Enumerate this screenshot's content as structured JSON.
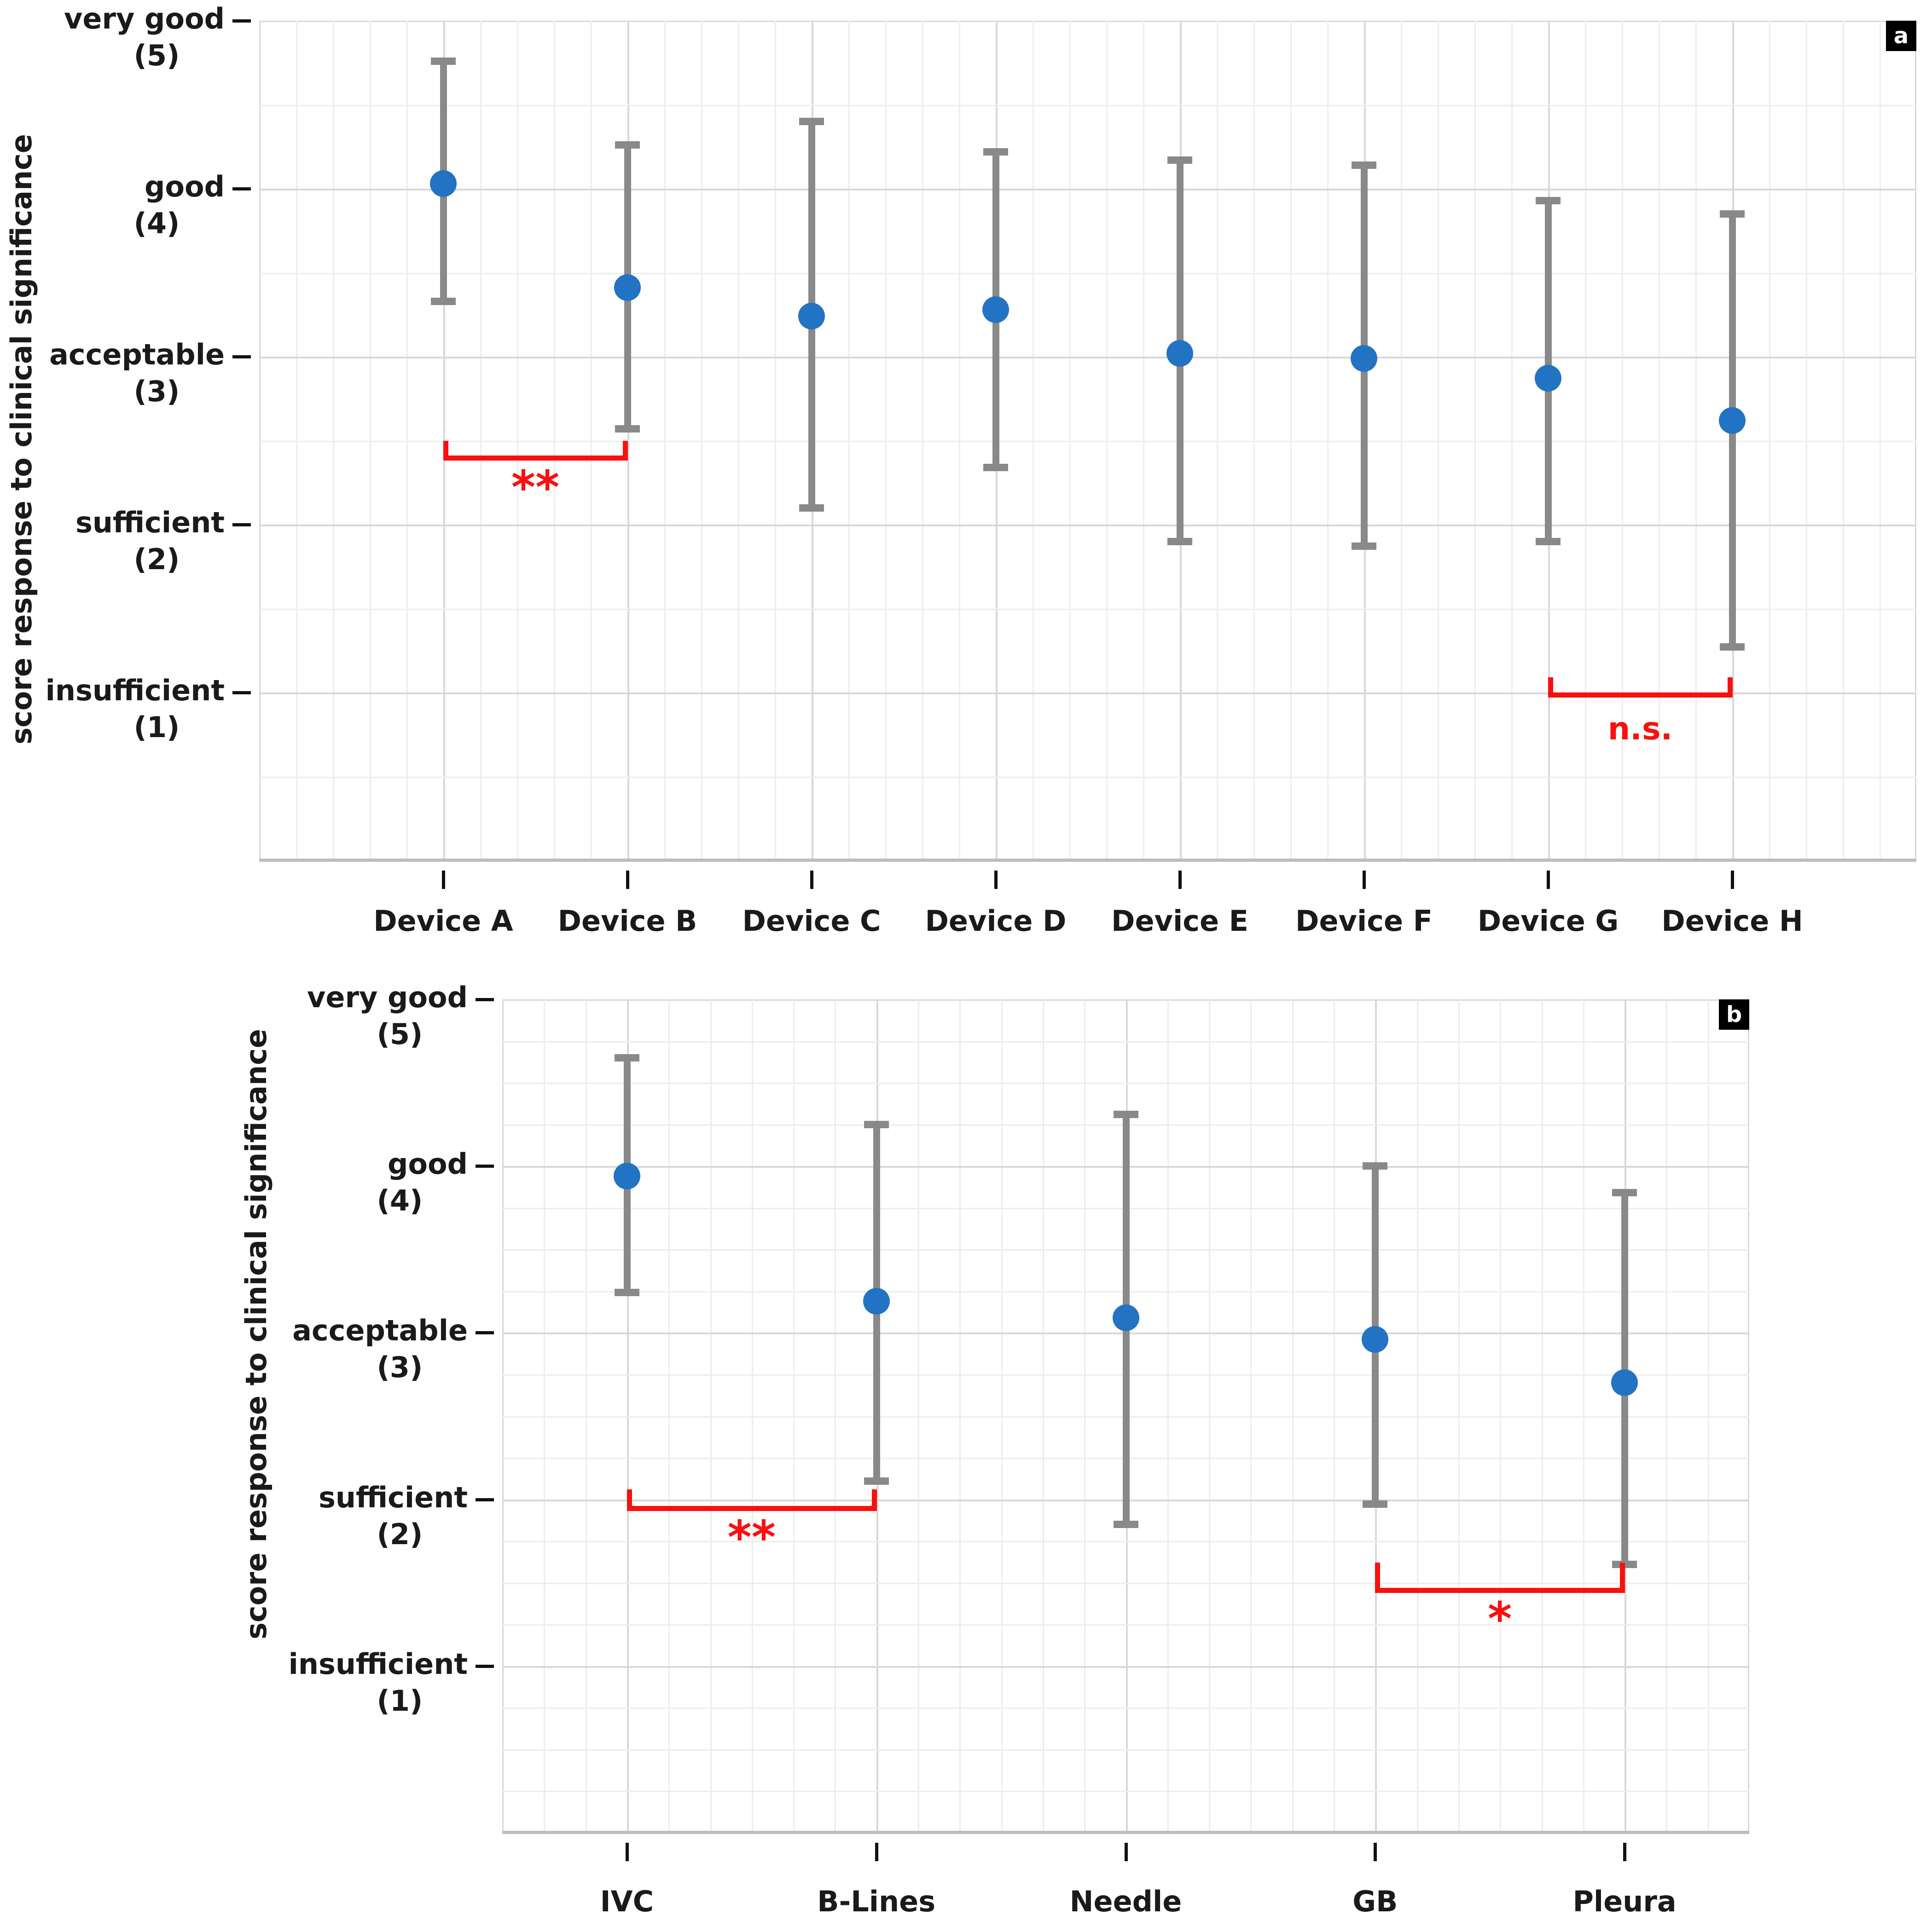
{
  "figure": {
    "y_axis_title": "score response to clinical significance",
    "colors": {
      "point": "#2273c3",
      "error_bar": "#898989",
      "significance": "#fa0f0f",
      "text": "#1a1a1a",
      "grid_minor": "#ededed",
      "grid_major": "#d8d8d8",
      "panel_label_bg": "#000000",
      "panel_label_fg": "#ffffff"
    }
  },
  "chart_data": [
    {
      "type": "scatter",
      "panel_label": "a",
      "title": "",
      "xlabel": "",
      "ylabel": "score response to clinical significance",
      "ylim": [
        0,
        5
      ],
      "grid": "on",
      "legend": "none",
      "y_ticks": [
        {
          "value": 5,
          "line1": "very good",
          "line2": "(5)"
        },
        {
          "value": 4,
          "line1": "good",
          "line2": "(4)"
        },
        {
          "value": 3,
          "line1": "acceptable",
          "line2": "(3)"
        },
        {
          "value": 2,
          "line1": "sufficient",
          "line2": "(2)"
        },
        {
          "value": 1,
          "line1": "insufficient",
          "line2": "(1)"
        }
      ],
      "categories": [
        "Device A",
        "Device B",
        "Device C",
        "Device D",
        "Device E",
        "Device F",
        "Device G",
        "Device H"
      ],
      "points": [
        {
          "category": "Device A",
          "mean": 4.03,
          "lo": 3.33,
          "hi": 4.76
        },
        {
          "category": "Device B",
          "mean": 3.41,
          "lo": 2.57,
          "hi": 4.26
        },
        {
          "category": "Device C",
          "mean": 3.24,
          "lo": 2.1,
          "hi": 4.4
        },
        {
          "category": "Device D",
          "mean": 3.28,
          "lo": 2.34,
          "hi": 4.22
        },
        {
          "category": "Device E",
          "mean": 3.02,
          "lo": 1.9,
          "hi": 4.17
        },
        {
          "category": "Device F",
          "mean": 2.99,
          "lo": 1.87,
          "hi": 4.14
        },
        {
          "category": "Device G",
          "mean": 2.87,
          "lo": 1.9,
          "hi": 3.93
        },
        {
          "category": "Device H",
          "mean": 2.62,
          "lo": 1.27,
          "hi": 3.85
        }
      ],
      "significance_brackets": [
        {
          "from": "Device A",
          "to": "Device B",
          "label": "**",
          "y": 2.41,
          "tick_height": 0.09,
          "label_y": 2.22,
          "label_size": 100
        },
        {
          "from": "Device G",
          "to": "Device H",
          "label": "n.s.",
          "y": 1.0,
          "tick_height": 0.09,
          "label_y": 0.78,
          "label_size": 68
        }
      ]
    },
    {
      "type": "scatter",
      "panel_label": "b",
      "title": "",
      "xlabel": "",
      "ylabel": "score response to clinical significance",
      "ylim": [
        0,
        5
      ],
      "grid": "on",
      "legend": "none",
      "y_ticks": [
        {
          "value": 5,
          "line1": "very good",
          "line2": "(5)"
        },
        {
          "value": 4,
          "line1": "good",
          "line2": "(4)"
        },
        {
          "value": 3,
          "line1": "acceptable",
          "line2": "(3)"
        },
        {
          "value": 2,
          "line1": "sufficient",
          "line2": "(2)"
        },
        {
          "value": 1,
          "line1": "insufficient",
          "line2": "(1)"
        }
      ],
      "categories": [
        "IVC",
        "B-Lines",
        "Needle",
        "GB",
        "Pleura"
      ],
      "points": [
        {
          "category": "IVC",
          "mean": 3.94,
          "lo": 3.24,
          "hi": 4.65
        },
        {
          "category": "B-Lines",
          "mean": 3.19,
          "lo": 2.11,
          "hi": 4.25
        },
        {
          "category": "Needle",
          "mean": 3.09,
          "lo": 1.85,
          "hi": 4.31
        },
        {
          "category": "GB",
          "mean": 2.96,
          "lo": 1.97,
          "hi": 4.0
        },
        {
          "category": "Pleura",
          "mean": 2.7,
          "lo": 1.61,
          "hi": 3.84
        }
      ],
      "significance_brackets": [
        {
          "from": "IVC",
          "to": "B-Lines",
          "label": "**",
          "y": 1.96,
          "tick_height": 0.1,
          "label_y": 1.77,
          "label_size": 100
        },
        {
          "from": "GB",
          "to": "Pleura",
          "label": "*",
          "y": 1.47,
          "tick_height": 0.15,
          "label_y": 1.28,
          "label_size": 100
        }
      ]
    }
  ]
}
